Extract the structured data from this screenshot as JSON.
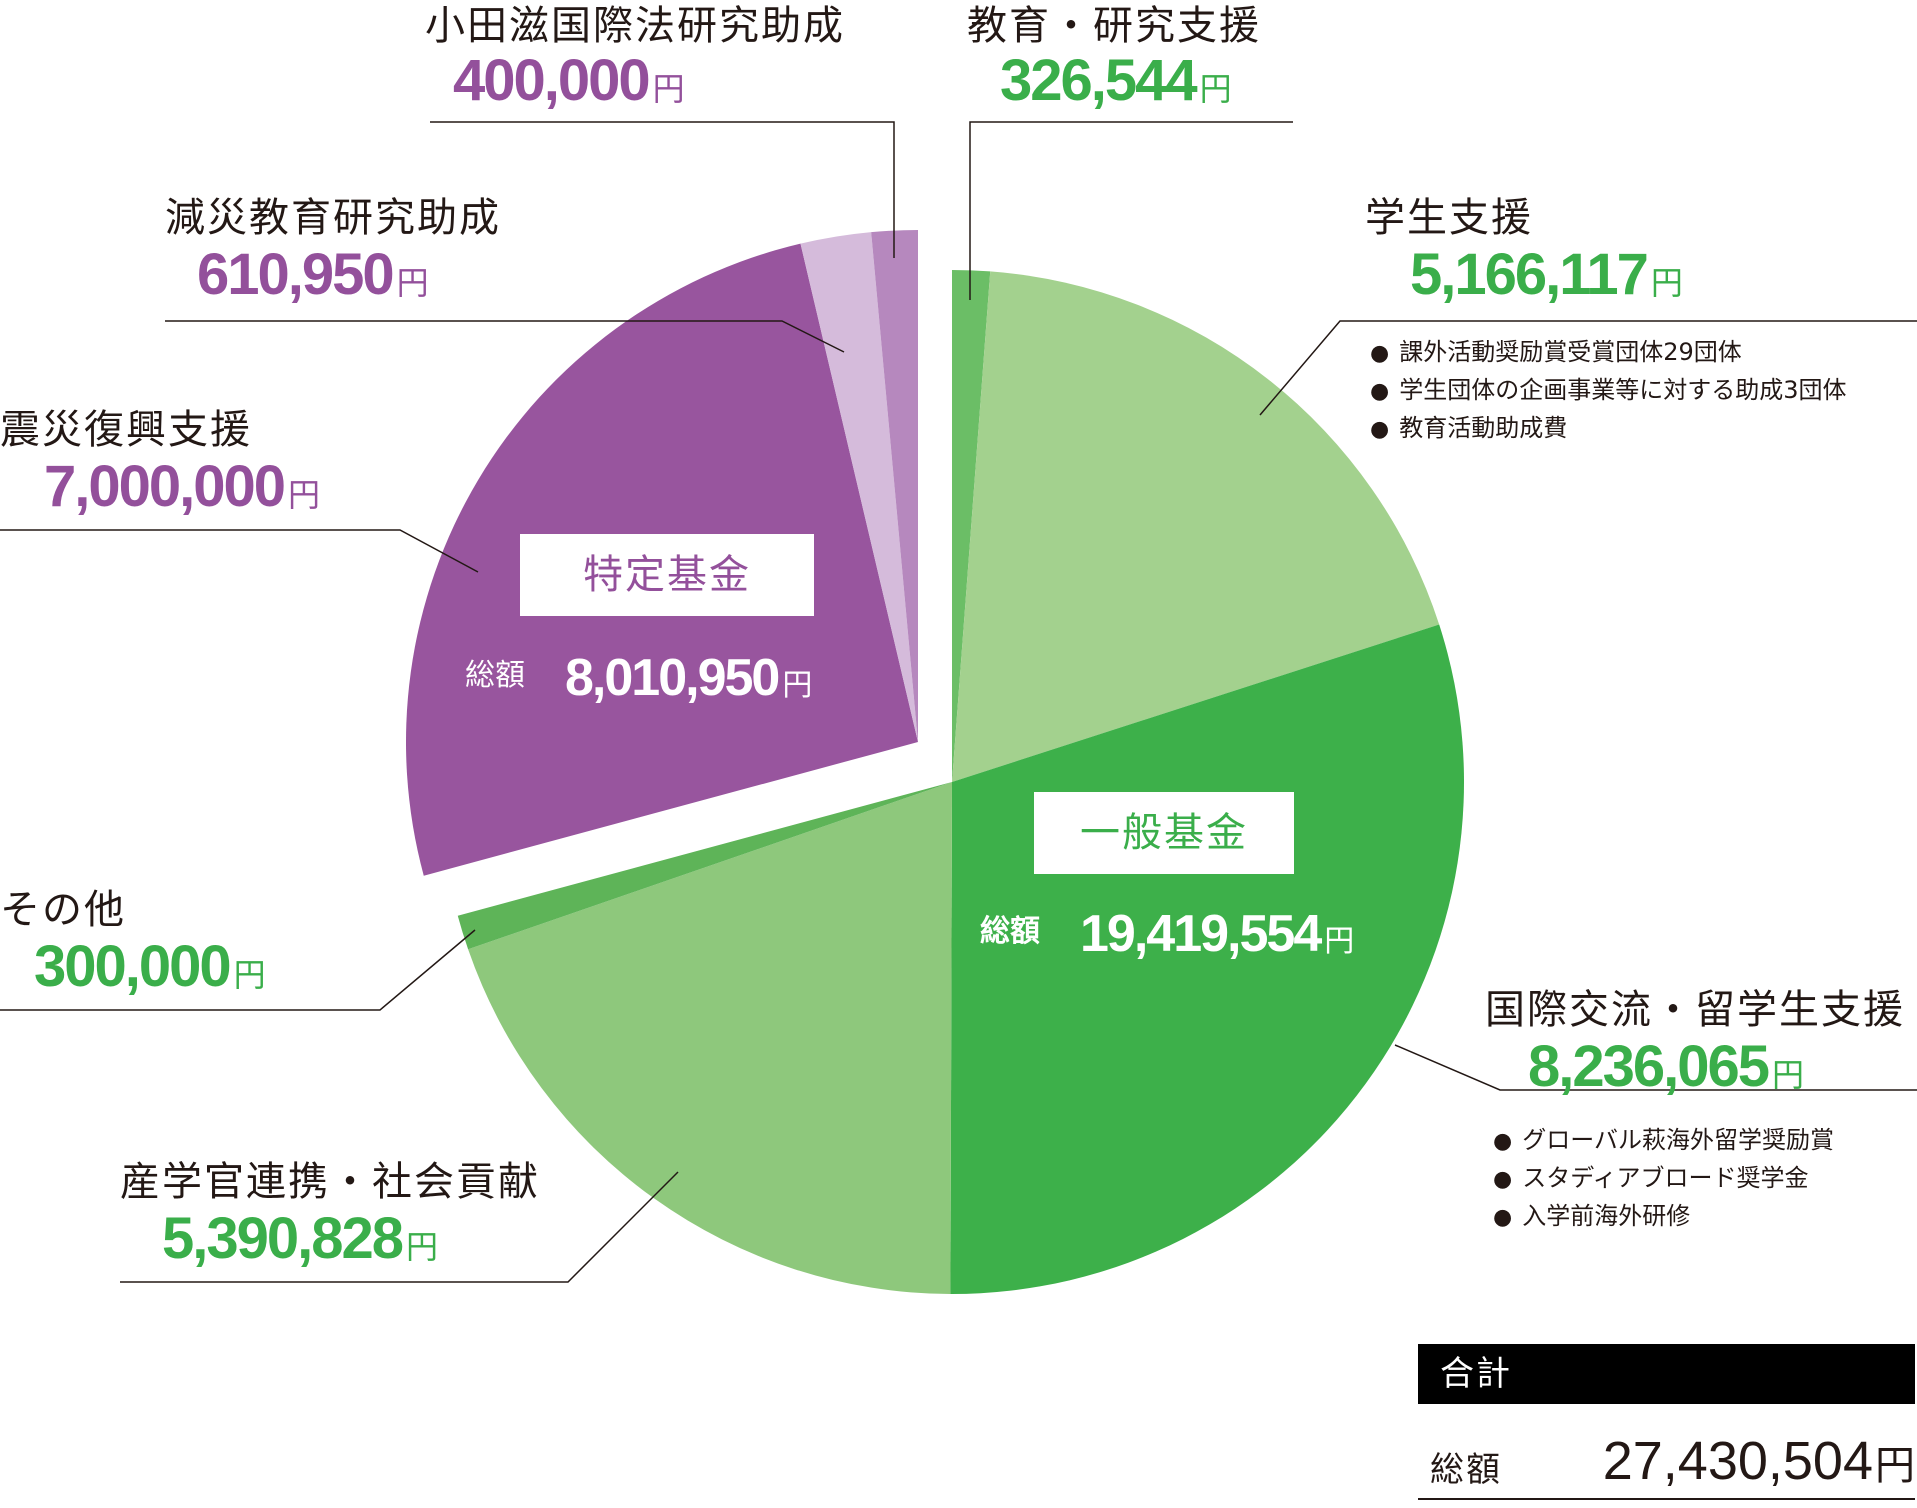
{
  "chart_data": {
    "type": "pie",
    "unit": "円",
    "slices": [
      {
        "name": "教育・研究支援",
        "value": 326544,
        "group": "一般基金",
        "color": "#6BBE66"
      },
      {
        "name": "学生支援",
        "value": 5166117,
        "group": "一般基金",
        "color": "#A3D18E",
        "details": [
          "課外活動奨励賞受賞団体29団体",
          "学生団体の企画事業等に対する助成3団体",
          "教育活動助成費"
        ]
      },
      {
        "name": "国際交流・留学生支援",
        "value": 8236065,
        "group": "一般基金",
        "color": "#3DB04A",
        "details": [
          "グローバル萩海外留学奨励賞",
          "スタディアブロード奨学金",
          "入学前海外研修"
        ]
      },
      {
        "name": "産学官連携・社会貢献",
        "value": 5390828,
        "group": "一般基金",
        "color": "#8EC87C"
      },
      {
        "name": "その他",
        "value": 300000,
        "group": "一般基金",
        "color": "#5EB458"
      },
      {
        "name": "震災復興支援",
        "value": 7000000,
        "group": "特定基金",
        "color": "#98559E"
      },
      {
        "name": "減災教育研究助成",
        "value": 610950,
        "group": "特定基金",
        "color": "#D5BBDB"
      },
      {
        "name": "小田滋国際法研究助成",
        "value": 400000,
        "group": "特定基金",
        "color": "#B688BE"
      }
    ],
    "groups": [
      {
        "name": "一般基金",
        "total_label": "総額",
        "total": "19,419,554",
        "unit": "円"
      },
      {
        "name": "特定基金",
        "total_label": "総額",
        "total": "8,010,950",
        "unit": "円"
      }
    ]
  },
  "labels": {
    "research": {
      "name": "教育・研究支援",
      "amount": "326,544",
      "unit": "円"
    },
    "student": {
      "name": "学生支援",
      "amount": "5,166,117",
      "unit": "円",
      "bullets": [
        "課外活動奨励賞受賞団体29団体",
        "学生団体の企画事業等に対する助成3団体",
        "教育活動助成費"
      ]
    },
    "intl": {
      "name": "国際交流・留学生支援",
      "amount": "8,236,065",
      "unit": "円",
      "bullets": [
        "グローバル萩海外留学奨励賞",
        "スタディアブロード奨学金",
        "入学前海外研修"
      ]
    },
    "industry": {
      "name": "産学官連携・社会貢献",
      "amount": "5,390,828",
      "unit": "円"
    },
    "other": {
      "name": "その他",
      "amount": "300,000",
      "unit": "円"
    },
    "quake": {
      "name": "震災復興支援",
      "amount": "7,000,000",
      "unit": "円"
    },
    "disaster": {
      "name": "減災教育研究助成",
      "amount": "610,950",
      "unit": "円"
    },
    "oda": {
      "name": "小田滋国際法研究助成",
      "amount": "400,000",
      "unit": "円"
    },
    "bullet_mark": "●"
  },
  "funds": {
    "general": {
      "title": "一般基金",
      "total_label": "総額",
      "total": "19,419,554",
      "unit": "円"
    },
    "special": {
      "title": "特定基金",
      "total_label": "総額",
      "total": "8,010,950",
      "unit": "円"
    }
  },
  "grand_total": {
    "header": "合計",
    "label": "総額",
    "value": "27,430,504",
    "unit": "円"
  },
  "colors": {
    "general_accent": "#3AAE4A",
    "special_accent": "#93509B",
    "leader_line": "#231815"
  }
}
